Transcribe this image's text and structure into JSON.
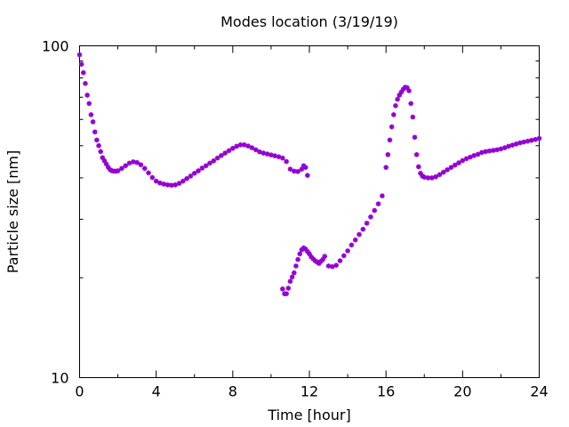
{
  "chart_data": {
    "type": "scatter",
    "title": "Modes location (3/19/19)",
    "xlabel": "Time [hour]",
    "ylabel": "Particle size [nm]",
    "xlim": [
      0,
      24
    ],
    "ylim": [
      10,
      100
    ],
    "yscale": "log",
    "xticks": [
      0,
      4,
      8,
      12,
      16,
      20,
      24
    ],
    "xtick_labels": [
      "0",
      "4",
      "8",
      "12",
      "16",
      "20",
      "24"
    ],
    "yticks": [
      10,
      100
    ],
    "ytick_labels": [
      "10",
      "100"
    ],
    "grid": false,
    "legend": "none",
    "marker": "asterisk",
    "color": "#9400d3",
    "series": [
      {
        "x": [
          0.0,
          0.1,
          0.2,
          0.3,
          0.4,
          0.5,
          0.6,
          0.7,
          0.8,
          0.9,
          1.0,
          1.1,
          1.2,
          1.3,
          1.4,
          1.5,
          1.6,
          1.7,
          1.8,
          1.9,
          2.0,
          2.2,
          2.4,
          2.6,
          2.8,
          3.0,
          3.2,
          3.4,
          3.6,
          3.8,
          4.0,
          4.2,
          4.4,
          4.6,
          4.8,
          5.0,
          5.2,
          5.4,
          5.6,
          5.8,
          6.0,
          6.2,
          6.4,
          6.6,
          6.8,
          7.0,
          7.2,
          7.4,
          7.6,
          7.8,
          8.0,
          8.2,
          8.4,
          8.6,
          8.8,
          9.0,
          9.2,
          9.4,
          9.6,
          9.8,
          10.0,
          10.2,
          10.4,
          10.6,
          10.8,
          11.0,
          11.2,
          11.4,
          11.6,
          11.7,
          11.8,
          11.9
        ],
        "y": [
          94,
          88,
          83,
          77,
          71,
          67,
          62,
          59,
          55,
          52,
          50,
          48,
          46,
          45,
          44,
          43,
          42.3,
          42,
          41.9,
          41.9,
          42,
          42.7,
          43.5,
          44.3,
          44.7,
          44.5,
          43.8,
          42.7,
          41.4,
          40.1,
          39.1,
          38.6,
          38.3,
          38.1,
          38,
          38.1,
          38.5,
          39.1,
          39.8,
          40.5,
          41.3,
          42,
          42.8,
          43.5,
          44.3,
          45,
          45.9,
          46.7,
          47.5,
          48.3,
          49.1,
          49.8,
          50.3,
          50.3,
          49.9,
          49.3,
          48.6,
          47.9,
          47.5,
          47.2,
          46.9,
          46.6,
          46.3,
          45.9,
          44.8,
          42.5,
          41.9,
          41.8,
          42.5,
          43.5,
          43,
          40.7
        ]
      },
      {
        "x": [
          10.6,
          10.7,
          10.8,
          10.9,
          11.0,
          11.1,
          11.2,
          11.3,
          11.4,
          11.5,
          11.6,
          11.7,
          11.8,
          11.9,
          12.0,
          12.1,
          12.2,
          12.3,
          12.4,
          12.5,
          12.6,
          12.7,
          12.8,
          13.0,
          13.2,
          13.4,
          13.6,
          13.8,
          14.0,
          14.2,
          14.4,
          14.6,
          14.8,
          15.0,
          15.2,
          15.4,
          15.6,
          15.8,
          16.0,
          16.1,
          16.2,
          16.3,
          16.4,
          16.5,
          16.6,
          16.7,
          16.8,
          16.9,
          17.0,
          17.1,
          17.2,
          17.3,
          17.4,
          17.5,
          17.6,
          17.7,
          17.8,
          17.9,
          18.0,
          18.2,
          18.4,
          18.6,
          18.8,
          19.0,
          19.2,
          19.4,
          19.6,
          19.8,
          20.0,
          20.2,
          20.4,
          20.6,
          20.8,
          21.0,
          21.2,
          21.4,
          21.6,
          21.8,
          22.0,
          22.2,
          22.4,
          22.6,
          22.8,
          23.0,
          23.2,
          23.4,
          23.6,
          23.8,
          24.0
        ],
        "y": [
          18.5,
          17.9,
          17.9,
          18.6,
          19.5,
          20.1,
          20.7,
          21.7,
          22.7,
          23.6,
          24.3,
          24.6,
          24.4,
          24,
          23.6,
          23.1,
          22.8,
          22.5,
          22.3,
          22.1,
          22.4,
          22.7,
          23.2,
          21.7,
          21.6,
          21.8,
          22.5,
          23.3,
          24.1,
          25.1,
          26,
          27,
          28,
          29.2,
          30.5,
          31.9,
          33.4,
          35.3,
          43,
          47,
          52,
          57,
          62,
          66,
          69,
          71,
          72.5,
          74,
          75,
          74.8,
          73.2,
          67,
          61,
          53,
          47,
          43.2,
          41.3,
          40.5,
          40.2,
          40,
          40,
          40.3,
          40.9,
          41.6,
          42.3,
          43,
          43.7,
          44.4,
          45.1,
          45.7,
          46.2,
          46.7,
          47.1,
          47.7,
          48,
          48.2,
          48.4,
          48.6,
          48.9,
          49.3,
          49.8,
          50.2,
          50.6,
          51,
          51.3,
          51.6,
          51.9,
          52.2,
          52.6
        ]
      }
    ]
  }
}
